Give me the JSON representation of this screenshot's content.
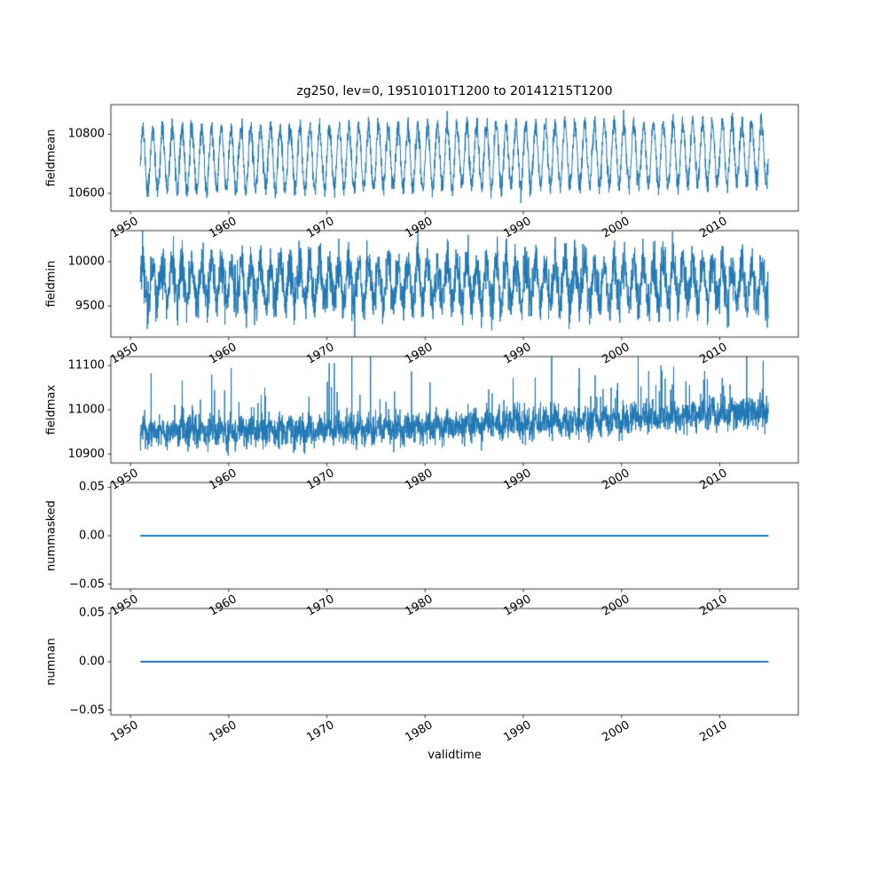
{
  "figure": {
    "title": "zg250, lev=0, 19510101T1200 to 20141215T1200",
    "xlabel": "validtime",
    "line_color": "#1f77b4",
    "axes_color": "#000000",
    "background_color": "#ffffff",
    "text_color": "#000000"
  },
  "chart_data": [
    {
      "type": "line",
      "ylabel": "fieldmean",
      "x_start": 1951.0,
      "x_end": 2014.96,
      "xlim": [
        1948,
        2018
      ],
      "ylim": [
        10540,
        10900
      ],
      "xticks": [
        1950,
        1960,
        1970,
        1980,
        1990,
        2000,
        2010
      ],
      "xtick_labels": [
        "1950",
        "1960",
        "1970",
        "1980",
        "1990",
        "2000",
        "2010"
      ],
      "yticks": [
        10600,
        10800
      ],
      "ytick_labels": [
        "10600",
        "10800"
      ],
      "grid": false,
      "legend": false,
      "series_summary": {
        "kind": "seasonal",
        "mean": 10712,
        "seasonal_amplitude": 104,
        "noise_sd": 17,
        "trend_per_year": 0.4,
        "points_per_year": 52,
        "seed": 11
      }
    },
    {
      "type": "line",
      "ylabel": "fieldmin",
      "x_start": 1951.0,
      "x_end": 2014.96,
      "xlim": [
        1948,
        2018
      ],
      "ylim": [
        9150,
        10350
      ],
      "xticks": [
        1950,
        1960,
        1970,
        1980,
        1990,
        2000,
        2010
      ],
      "xtick_labels": [
        "1950",
        "1960",
        "1970",
        "1980",
        "1990",
        "2000",
        "2010"
      ],
      "yticks": [
        9500,
        10000
      ],
      "ytick_labels": [
        "9500",
        "10000"
      ],
      "grid": false,
      "legend": false,
      "series_summary": {
        "kind": "seasonal",
        "mean": 9760,
        "seasonal_amplitude": 235,
        "noise_sd": 125,
        "trend_per_year": 0.0,
        "points_per_year": 52,
        "seed": 22
      }
    },
    {
      "type": "line",
      "ylabel": "fieldmax",
      "x_start": 1951.0,
      "x_end": 2014.96,
      "xlim": [
        1948,
        2018
      ],
      "ylim": [
        10880,
        11120
      ],
      "xticks": [
        1950,
        1960,
        1970,
        1980,
        1990,
        2000,
        2010
      ],
      "xtick_labels": [
        "1950",
        "1960",
        "1970",
        "1980",
        "1990",
        "2000",
        "2010"
      ],
      "yticks": [
        10900,
        11000,
        11100
      ],
      "ytick_labels": [
        "10900",
        "11000",
        "11100"
      ],
      "grid": false,
      "legend": false,
      "series_summary": {
        "kind": "noisy_trend",
        "base": 10950,
        "quadratic_trend_total": 48,
        "seasonal_amplitude": 10,
        "noise_sd": 16,
        "spike_probability": 0.05,
        "spike_mean": 50,
        "points_per_year": 52,
        "seed": 33
      }
    },
    {
      "type": "line",
      "ylabel": "nummasked",
      "x_start": 1951.0,
      "x_end": 2014.96,
      "xlim": [
        1948,
        2018
      ],
      "ylim": [
        -0.055,
        0.055
      ],
      "xticks": [
        1950,
        1960,
        1970,
        1980,
        1990,
        2000,
        2010
      ],
      "xtick_labels": [
        "1950",
        "1960",
        "1970",
        "1980",
        "1990",
        "2000",
        "2010"
      ],
      "yticks": [
        -0.05,
        0.0,
        0.05
      ],
      "ytick_labels": [
        "−0.05",
        "0.00",
        "0.05"
      ],
      "grid": false,
      "legend": false,
      "series_summary": {
        "kind": "constant",
        "value": 0.0
      }
    },
    {
      "type": "line",
      "ylabel": "numnan",
      "x_start": 1951.0,
      "x_end": 2014.96,
      "xlim": [
        1948,
        2018
      ],
      "ylim": [
        -0.055,
        0.055
      ],
      "xticks": [
        1950,
        1960,
        1970,
        1980,
        1990,
        2000,
        2010
      ],
      "xtick_labels": [
        "1950",
        "1960",
        "1970",
        "1980",
        "1990",
        "2000",
        "2010"
      ],
      "yticks": [
        -0.05,
        0.0,
        0.05
      ],
      "ytick_labels": [
        "−0.05",
        "0.00",
        "0.05"
      ],
      "grid": false,
      "legend": false,
      "series_summary": {
        "kind": "constant",
        "value": 0.0
      }
    }
  ]
}
